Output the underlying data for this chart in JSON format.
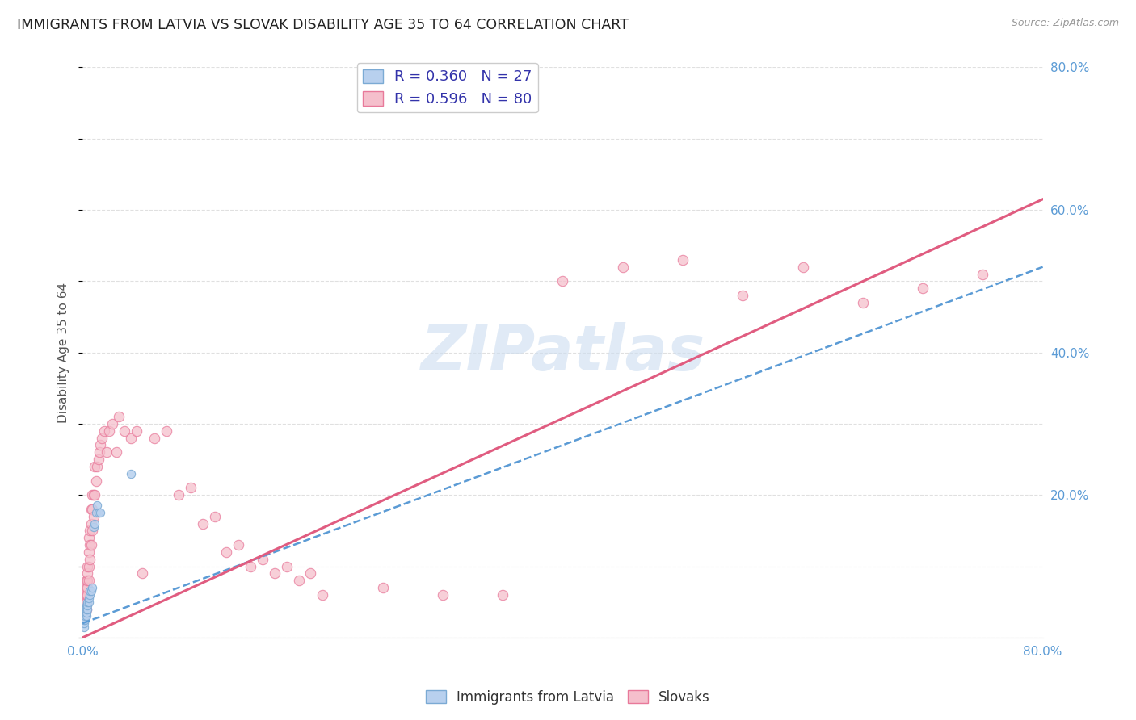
{
  "title": "IMMIGRANTS FROM LATVIA VS SLOVAK DISABILITY AGE 35 TO 64 CORRELATION CHART",
  "source": "Source: ZipAtlas.com",
  "ylabel": "Disability Age 35 to 64",
  "xlim": [
    0.0,
    0.8
  ],
  "ylim": [
    0.0,
    0.8
  ],
  "xticks": [
    0.0,
    0.1,
    0.2,
    0.3,
    0.4,
    0.5,
    0.6,
    0.7,
    0.8
  ],
  "yticks": [
    0.0,
    0.1,
    0.2,
    0.3,
    0.4,
    0.5,
    0.6,
    0.7,
    0.8
  ],
  "legend_entries": [
    {
      "label": "R = 0.360   N = 27",
      "color": "#b8d0ee",
      "edge_color": "#7baad4"
    },
    {
      "label": "R = 0.596   N = 80",
      "color": "#f5bfcc",
      "edge_color": "#e8799a"
    }
  ],
  "scatter_latvia": {
    "color": "#b8d0ee",
    "edgecolor": "#7baad4",
    "size": 55,
    "x": [
      0.001,
      0.001,
      0.001,
      0.002,
      0.002,
      0.002,
      0.002,
      0.003,
      0.003,
      0.003,
      0.003,
      0.004,
      0.004,
      0.004,
      0.005,
      0.005,
      0.006,
      0.006,
      0.007,
      0.008,
      0.009,
      0.01,
      0.011,
      0.012,
      0.013,
      0.015,
      0.04
    ],
    "y": [
      0.015,
      0.02,
      0.025,
      0.025,
      0.03,
      0.035,
      0.04,
      0.03,
      0.035,
      0.04,
      0.045,
      0.04,
      0.045,
      0.05,
      0.05,
      0.055,
      0.06,
      0.065,
      0.065,
      0.07,
      0.155,
      0.16,
      0.175,
      0.185,
      0.175,
      0.175,
      0.23
    ]
  },
  "scatter_slovak": {
    "color": "#f5bfcc",
    "edgecolor": "#e8799a",
    "size": 80,
    "x": [
      0.001,
      0.001,
      0.001,
      0.001,
      0.001,
      0.002,
      0.002,
      0.002,
      0.002,
      0.002,
      0.002,
      0.003,
      0.003,
      0.003,
      0.003,
      0.003,
      0.004,
      0.004,
      0.004,
      0.004,
      0.004,
      0.005,
      0.005,
      0.005,
      0.005,
      0.006,
      0.006,
      0.006,
      0.007,
      0.007,
      0.007,
      0.008,
      0.008,
      0.008,
      0.009,
      0.009,
      0.01,
      0.01,
      0.011,
      0.012,
      0.013,
      0.014,
      0.015,
      0.016,
      0.018,
      0.02,
      0.022,
      0.025,
      0.028,
      0.03,
      0.035,
      0.04,
      0.045,
      0.05,
      0.06,
      0.07,
      0.08,
      0.09,
      0.1,
      0.11,
      0.12,
      0.13,
      0.14,
      0.15,
      0.16,
      0.17,
      0.18,
      0.19,
      0.2,
      0.25,
      0.3,
      0.35,
      0.4,
      0.45,
      0.5,
      0.55,
      0.6,
      0.65,
      0.7,
      0.75
    ],
    "y": [
      0.03,
      0.035,
      0.04,
      0.045,
      0.05,
      0.03,
      0.035,
      0.04,
      0.045,
      0.05,
      0.055,
      0.04,
      0.05,
      0.06,
      0.07,
      0.08,
      0.06,
      0.07,
      0.08,
      0.09,
      0.1,
      0.08,
      0.1,
      0.12,
      0.14,
      0.11,
      0.13,
      0.15,
      0.13,
      0.16,
      0.18,
      0.15,
      0.18,
      0.2,
      0.17,
      0.2,
      0.2,
      0.24,
      0.22,
      0.24,
      0.25,
      0.26,
      0.27,
      0.28,
      0.29,
      0.26,
      0.29,
      0.3,
      0.26,
      0.31,
      0.29,
      0.28,
      0.29,
      0.09,
      0.28,
      0.29,
      0.2,
      0.21,
      0.16,
      0.17,
      0.12,
      0.13,
      0.1,
      0.11,
      0.09,
      0.1,
      0.08,
      0.09,
      0.06,
      0.07,
      0.06,
      0.06,
      0.5,
      0.52,
      0.53,
      0.48,
      0.52,
      0.47,
      0.49,
      0.51
    ]
  },
  "line_latvia": {
    "color": "#5b9bd5",
    "style": "--",
    "linewidth": 1.8,
    "x0": 0.0,
    "y0": 0.02,
    "x1": 0.8,
    "y1": 0.52
  },
  "line_slovak": {
    "color": "#e05c80",
    "style": "-",
    "linewidth": 2.2,
    "x0": 0.0,
    "y0": 0.0,
    "x1": 0.8,
    "y1": 0.615
  },
  "watermark_text": "ZIPatlas",
  "watermark_color": "#ccddf0",
  "background_color": "#ffffff",
  "grid_color": "#e0e0e0",
  "title_fontsize": 12.5,
  "label_fontsize": 11,
  "tick_fontsize": 11,
  "legend_fontsize": 13,
  "source_fontsize": 9
}
